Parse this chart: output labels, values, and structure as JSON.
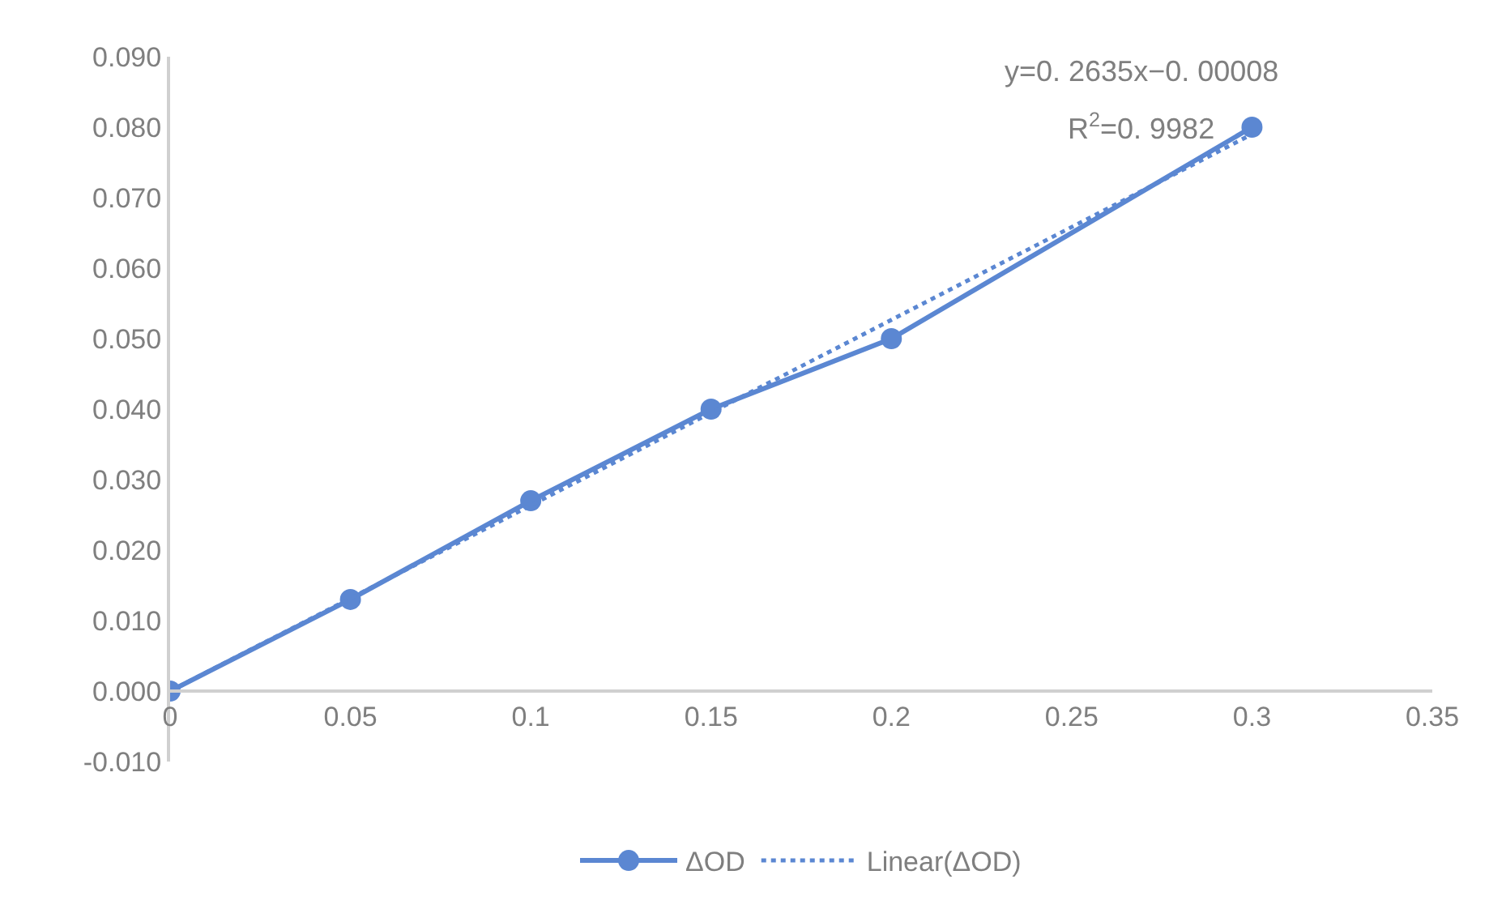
{
  "chart_data": {
    "type": "line",
    "x": [
      0,
      0.05,
      0.1,
      0.15,
      0.2,
      0.3
    ],
    "series": [
      {
        "name": "ΔOD",
        "color": "#5b87d2",
        "values": [
          0,
          0.013,
          0.027,
          0.04,
          0.05,
          0.08
        ],
        "marker": "circle",
        "line_style": "solid"
      },
      {
        "name": "Linear(ΔOD)",
        "color": "#5b87d2",
        "type": "line",
        "x": [
          0,
          0.3
        ],
        "values": [
          0,
          0.079
        ],
        "marker": "none",
        "line_style": "dotted"
      }
    ],
    "xlim": [
      0,
      0.35
    ],
    "xticks": [
      0,
      0.05,
      0.1,
      0.15,
      0.2,
      0.25,
      0.3,
      0.35
    ],
    "ylim": [
      -0.01,
      0.09
    ],
    "yticks": [
      {
        "value": -0.01,
        "label": "-0.010"
      },
      {
        "value": 0,
        "label": "0.000"
      },
      {
        "value": 0.01,
        "label": "0.010"
      },
      {
        "value": 0.02,
        "label": "0.020"
      },
      {
        "value": 0.03,
        "label": "0.030"
      },
      {
        "value": 0.04,
        "label": "0.040"
      },
      {
        "value": 0.05,
        "label": "0.050"
      },
      {
        "value": 0.06,
        "label": "0.060"
      },
      {
        "value": 0.07,
        "label": "0.070"
      },
      {
        "value": 0.08,
        "label": "0.080"
      },
      {
        "value": 0.09,
        "label": "0.090"
      }
    ],
    "annotations": [
      "y=0. 2635x−0. 00008",
      "R$^{2}$=0. 9982"
    ],
    "grid": false,
    "legend": "bottom"
  }
}
